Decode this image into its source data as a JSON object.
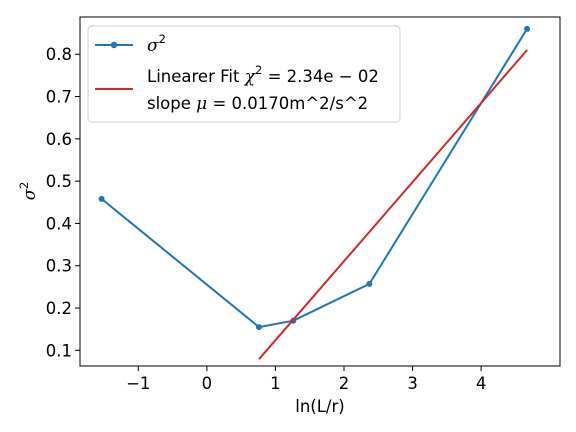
{
  "chart_data": {
    "type": "line",
    "xlabel": "ln(L/r)",
    "ylabel": "σ",
    "ylabel_sup": "2",
    "xlim": [
      -1.85,
      5.15
    ],
    "ylim": [
      0.063,
      0.888
    ],
    "xticks": [
      -1,
      0,
      1,
      2,
      3,
      4
    ],
    "xtick_labels": [
      "−1",
      "0",
      "1",
      "2",
      "3",
      "4"
    ],
    "yticks": [
      0.1,
      0.2,
      0.3,
      0.4,
      0.5,
      0.6,
      0.7,
      0.8
    ],
    "ytick_labels": [
      "0.1",
      "0.2",
      "0.3",
      "0.4",
      "0.5",
      "0.6",
      "0.7",
      "0.8"
    ],
    "grid": false,
    "legend_position": "top-left",
    "series": [
      {
        "name": "σ",
        "name_sup": "2",
        "kind": "line-marker",
        "color": "#1f77b4",
        "x": [
          -1.535,
          0.76,
          1.26,
          2.37,
          4.67
        ],
        "y": [
          0.458,
          0.155,
          0.17,
          0.257,
          0.86
        ]
      },
      {
        "kind": "line",
        "color": "#d62728",
        "x": [
          0.76,
          4.67
        ],
        "y": [
          0.079,
          0.81
        ],
        "legend": {
          "line1_prefix": "Linearer Fit ",
          "line1_chi": "χ",
          "line1_sup": "2",
          "line1_value": " = 2.34e − 02",
          "line2_prefix": "slope ",
          "line2_mu": "μ",
          "line2_value": " = 0.0170m^2/s^2"
        }
      }
    ]
  }
}
